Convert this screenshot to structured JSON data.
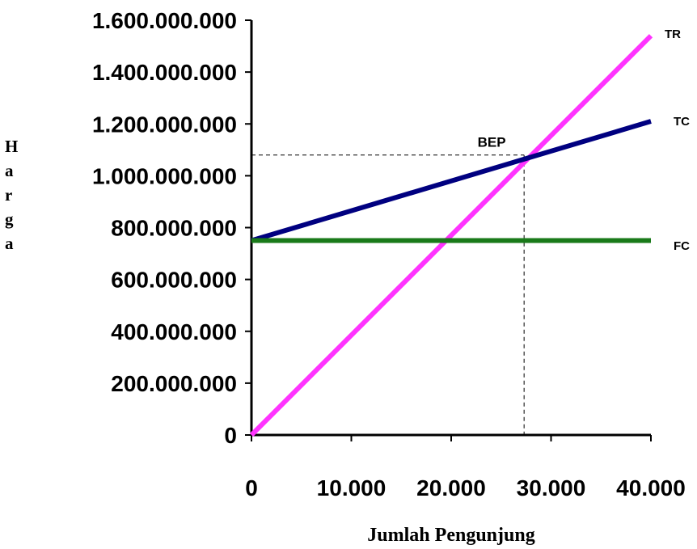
{
  "chart_data": {
    "type": "line",
    "xlabel": "Jumlah Pengunjung",
    "ylabel_chars": [
      "H",
      "a",
      "r",
      "g",
      "a"
    ],
    "xlim": [
      0,
      40000
    ],
    "ylim": [
      0,
      1600000000
    ],
    "x_ticks": [
      0,
      10000,
      20000,
      30000,
      40000
    ],
    "x_tick_labels": [
      "0",
      "10.000",
      "20.000",
      "30.000",
      "40.000"
    ],
    "y_ticks": [
      0,
      200000000,
      400000000,
      600000000,
      800000000,
      1000000000,
      1200000000,
      1400000000,
      1600000000
    ],
    "y_tick_labels": [
      "0",
      "200.000.000",
      "400.000.000",
      "600.000.000",
      "800.000.000",
      "1.000.000.000",
      "1.200.000.000",
      "1.400.000.000",
      "1.600.000.000"
    ],
    "series": [
      {
        "name": "TR",
        "color": "#ff33ff",
        "x": [
          0,
          40000
        ],
        "y": [
          0,
          1540000000
        ]
      },
      {
        "name": "TC",
        "color": "#000080",
        "x": [
          0,
          40000
        ],
        "y": [
          750000000,
          1210000000
        ]
      },
      {
        "name": "FC",
        "color": "#1a7a1a",
        "x": [
          0,
          40000
        ],
        "y": [
          750000000,
          750000000
        ]
      }
    ],
    "bep": {
      "label": "BEP",
      "x": 27300,
      "y": 1080000000
    }
  }
}
